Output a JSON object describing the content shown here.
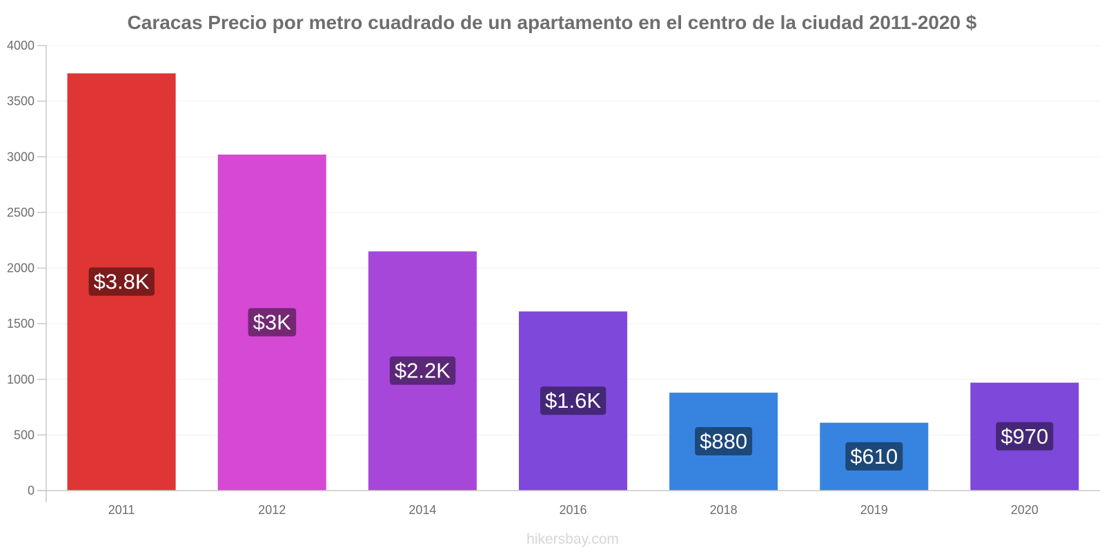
{
  "chart_data": {
    "type": "bar",
    "title": "Caracas Precio por metro cuadrado de un apartamento en el centro de la ciudad 2011-2020 $",
    "categories": [
      "2011",
      "2012",
      "2014",
      "2016",
      "2018",
      "2019",
      "2020"
    ],
    "values": [
      3750,
      3020,
      2150,
      1610,
      880,
      610,
      970
    ],
    "data_labels": [
      "$3.8K",
      "$3K",
      "$2.2K",
      "$1.6K",
      "$880",
      "$610",
      "$970"
    ],
    "bar_colors": [
      "#e03535",
      "#d549d4",
      "#a647da",
      "#7e48da",
      "#3783e0",
      "#3783e0",
      "#7e48da"
    ],
    "label_bg_colors": [
      "#7a1c1c",
      "#742873",
      "#5b2778",
      "#452778",
      "#1d4878",
      "#1d4878",
      "#452778"
    ],
    "yticks": [
      "0",
      "500",
      "1000",
      "1500",
      "2000",
      "2500",
      "3000",
      "3500",
      "4000"
    ],
    "ylim": [
      0,
      4000
    ],
    "xlabel": "",
    "ylabel": "",
    "grid": true,
    "legend": "none"
  },
  "watermark": "hikersbay.com"
}
